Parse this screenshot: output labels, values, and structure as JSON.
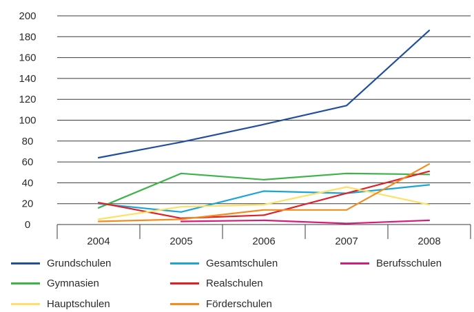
{
  "chart_data": {
    "type": "line",
    "title": "",
    "xlabel": "",
    "ylabel": "",
    "x": [
      "2004",
      "2005",
      "2006",
      "2007",
      "2008"
    ],
    "ylim": [
      0,
      200
    ],
    "yticks": [
      0,
      20,
      40,
      60,
      80,
      100,
      120,
      140,
      160,
      180,
      200
    ],
    "grid": "horizontal",
    "legend": "bottom",
    "series": [
      {
        "name": "Grundschulen",
        "color": "#1f4e9c",
        "values": [
          64,
          79,
          96,
          114,
          186
        ]
      },
      {
        "name": "Gesamtschulen",
        "color": "#19a6d6",
        "values": [
          20,
          12,
          32,
          30,
          38
        ]
      },
      {
        "name": "Berufsschulen",
        "color": "#d81b7a",
        "values": [
          null,
          3,
          4,
          1,
          4
        ]
      },
      {
        "name": "Gymnasien",
        "color": "#3db34a",
        "values": [
          16,
          49,
          43,
          49,
          48
        ]
      },
      {
        "name": "Realschulen",
        "color": "#e02026",
        "values": [
          21,
          6,
          9,
          30,
          51
        ]
      },
      {
        "name": "Hauptschulen",
        "color": "#ffe066",
        "values": [
          5,
          17,
          19,
          36,
          19
        ]
      },
      {
        "name": "Förderschulen",
        "color": "#f28c1e",
        "values": [
          3,
          5,
          14,
          14,
          58
        ]
      }
    ]
  }
}
